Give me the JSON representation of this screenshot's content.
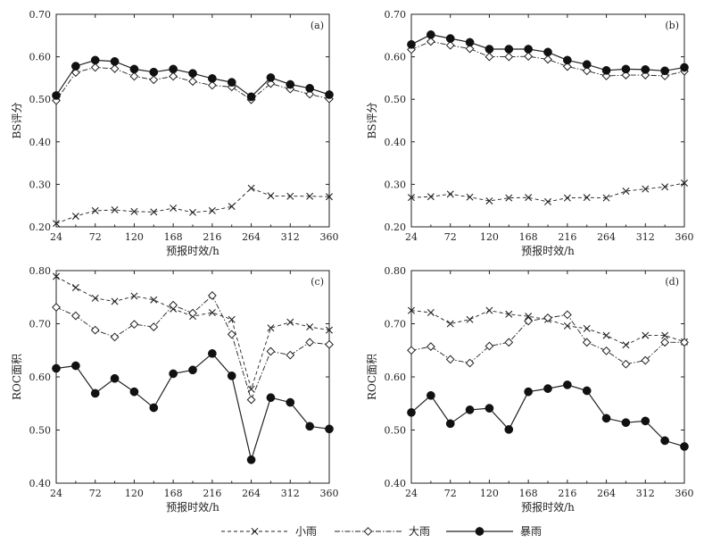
{
  "legend": [
    {
      "name": "小雨",
      "marker": "x-icon",
      "line": "dashed"
    },
    {
      "name": "大雨",
      "marker": "diamond-icon",
      "line": "dash-dot"
    },
    {
      "name": "暴雨",
      "marker": "filled-circle-icon",
      "line": "solid"
    }
  ],
  "chart_data": [
    {
      "type": "line",
      "panel_label": "(a)",
      "xlabel": "预报时效/h",
      "ylabel": "BS评分",
      "xlim": [
        24,
        360
      ],
      "ylim": [
        0.2,
        0.7
      ],
      "xticks": [
        24,
        72,
        120,
        168,
        216,
        264,
        312,
        360
      ],
      "yticks": [
        "0.20",
        "0.30",
        "0.40",
        "0.50",
        "0.60",
        "0.70"
      ],
      "x": [
        24,
        48,
        72,
        96,
        120,
        144,
        168,
        192,
        216,
        240,
        264,
        288,
        312,
        336,
        360
      ],
      "series": [
        {
          "name": "小雨",
          "values": [
            0.208,
            0.225,
            0.238,
            0.24,
            0.236,
            0.235,
            0.244,
            0.234,
            0.238,
            0.248,
            0.291,
            0.273,
            0.272,
            0.272,
            0.271
          ]
        },
        {
          "name": "大雨",
          "values": [
            0.497,
            0.563,
            0.575,
            0.572,
            0.554,
            0.546,
            0.554,
            0.542,
            0.533,
            0.529,
            0.499,
            0.537,
            0.524,
            0.512,
            0.501
          ]
        },
        {
          "name": "暴雨",
          "values": [
            0.509,
            0.578,
            0.592,
            0.589,
            0.571,
            0.564,
            0.571,
            0.561,
            0.549,
            0.54,
            0.506,
            0.551,
            0.535,
            0.526,
            0.511
          ]
        }
      ]
    },
    {
      "type": "line",
      "panel_label": "(b)",
      "xlabel": "预报时效/h",
      "ylabel": "BS评分",
      "xlim": [
        24,
        360
      ],
      "ylim": [
        0.2,
        0.7
      ],
      "xticks": [
        24,
        72,
        120,
        168,
        216,
        264,
        312,
        360
      ],
      "yticks": [
        "0.20",
        "0.30",
        "0.40",
        "0.50",
        "0.60",
        "0.70"
      ],
      "x": [
        24,
        48,
        72,
        96,
        120,
        144,
        168,
        192,
        216,
        240,
        264,
        288,
        312,
        336,
        360
      ],
      "series": [
        {
          "name": "小雨",
          "values": [
            0.269,
            0.271,
            0.277,
            0.27,
            0.261,
            0.268,
            0.269,
            0.259,
            0.268,
            0.269,
            0.268,
            0.284,
            0.289,
            0.294,
            0.303
          ]
        },
        {
          "name": "大雨",
          "values": [
            0.617,
            0.636,
            0.627,
            0.619,
            0.6,
            0.6,
            0.601,
            0.594,
            0.577,
            0.567,
            0.555,
            0.557,
            0.557,
            0.555,
            0.566
          ]
        },
        {
          "name": "暴雨",
          "values": [
            0.629,
            0.652,
            0.643,
            0.634,
            0.618,
            0.618,
            0.618,
            0.611,
            0.592,
            0.582,
            0.568,
            0.571,
            0.57,
            0.567,
            0.575
          ]
        }
      ]
    },
    {
      "type": "line",
      "panel_label": "(c)",
      "xlabel": "预报时效/h",
      "ylabel": "ROC面积",
      "xlim": [
        24,
        360
      ],
      "ylim": [
        0.4,
        0.8
      ],
      "xticks": [
        24,
        72,
        120,
        168,
        216,
        264,
        312,
        360
      ],
      "yticks": [
        "0.40",
        "0.50",
        "0.60",
        "0.70",
        "0.80"
      ],
      "x": [
        24,
        48,
        72,
        96,
        120,
        144,
        168,
        192,
        216,
        240,
        264,
        288,
        312,
        336,
        360
      ],
      "series": [
        {
          "name": "小雨",
          "values": [
            0.789,
            0.768,
            0.748,
            0.742,
            0.752,
            0.745,
            0.728,
            0.714,
            0.721,
            0.708,
            0.577,
            0.692,
            0.703,
            0.694,
            0.688
          ]
        },
        {
          "name": "大雨",
          "values": [
            0.731,
            0.715,
            0.688,
            0.675,
            0.699,
            0.694,
            0.735,
            0.72,
            0.753,
            0.68,
            0.557,
            0.648,
            0.641,
            0.665,
            0.661
          ]
        },
        {
          "name": "暴雨",
          "values": [
            0.616,
            0.621,
            0.569,
            0.597,
            0.572,
            0.542,
            0.606,
            0.613,
            0.644,
            0.602,
            0.444,
            0.561,
            0.552,
            0.507,
            0.502
          ]
        }
      ]
    },
    {
      "type": "line",
      "panel_label": "(d)",
      "xlabel": "预报时效/h",
      "ylabel": "ROC面积",
      "xlim": [
        24,
        360
      ],
      "ylim": [
        0.4,
        0.8
      ],
      "xticks": [
        24,
        72,
        120,
        168,
        216,
        264,
        312,
        360
      ],
      "yticks": [
        "0.40",
        "0.50",
        "0.60",
        "0.70",
        "0.80"
      ],
      "x": [
        24,
        48,
        72,
        96,
        120,
        144,
        168,
        192,
        216,
        240,
        264,
        288,
        312,
        336,
        360
      ],
      "series": [
        {
          "name": "小雨",
          "values": [
            0.725,
            0.721,
            0.7,
            0.708,
            0.725,
            0.718,
            0.714,
            0.708,
            0.696,
            0.691,
            0.678,
            0.66,
            0.678,
            0.678,
            0.666
          ]
        },
        {
          "name": "大雨",
          "values": [
            0.65,
            0.657,
            0.633,
            0.626,
            0.658,
            0.665,
            0.705,
            0.711,
            0.717,
            0.665,
            0.649,
            0.624,
            0.631,
            0.665,
            0.665
          ]
        },
        {
          "name": "暴雨",
          "values": [
            0.533,
            0.565,
            0.512,
            0.538,
            0.541,
            0.501,
            0.572,
            0.578,
            0.585,
            0.574,
            0.522,
            0.514,
            0.517,
            0.48,
            0.469
          ]
        }
      ]
    }
  ]
}
